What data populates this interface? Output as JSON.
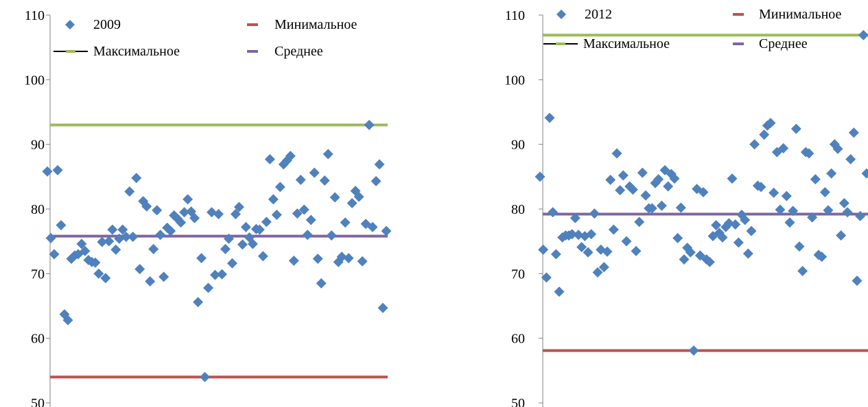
{
  "colors": {
    "points": "#4f81bd",
    "min_line": "#c0504d",
    "max_line": "#9bbb59",
    "mean_line": "#8064a2",
    "axis": "#808080"
  },
  "chart_data": [
    {
      "type": "scatter",
      "title": "",
      "xlabel": "",
      "ylabel": "",
      "ylim": [
        50,
        110
      ],
      "yticks": [
        "50",
        "60",
        "70",
        "80",
        "90",
        "100",
        "110"
      ],
      "legend": {
        "placement": "top",
        "points_label": "2009",
        "min_label": "Минимальное",
        "max_label": "Максимальное",
        "mean_label": "Среднее"
      },
      "min_value": 54,
      "max_value": 93,
      "mean_value": 75.8,
      "x": [
        1,
        2,
        3,
        4,
        5,
        6,
        7,
        8,
        9,
        10,
        11,
        12,
        13,
        14,
        15,
        16,
        17,
        18,
        19,
        20,
        21,
        22,
        23,
        24,
        25,
        26,
        27,
        28,
        29,
        30,
        31,
        32,
        33,
        34,
        35,
        36,
        37,
        38,
        39,
        40,
        41,
        42,
        43,
        44,
        45,
        46,
        47,
        48,
        49,
        50,
        51,
        52,
        53,
        54,
        55,
        56,
        57,
        58,
        59,
        60,
        61,
        62,
        63,
        64,
        65,
        66,
        67,
        68,
        69,
        70,
        71,
        72,
        73,
        74,
        75,
        76,
        77,
        78,
        79,
        80,
        81,
        82,
        83,
        84,
        85,
        86,
        87,
        88,
        89,
        90,
        91,
        92,
        93,
        94,
        95,
        96,
        97,
        98,
        99,
        100
      ],
      "values": [
        85.8,
        75.5,
        73,
        86,
        77.5,
        63.7,
        62.8,
        72.3,
        72.8,
        73,
        74.6,
        73.5,
        72.1,
        71.8,
        71.7,
        70,
        74.9,
        69.3,
        75,
        76.8,
        73.7,
        75.4,
        76.8,
        75.7,
        82.7,
        75.7,
        84.8,
        70.7,
        81.2,
        80.4,
        68.8,
        73.8,
        79.8,
        76,
        69.5,
        77.1,
        76.6,
        79,
        78.5,
        77.9,
        79.5,
        81.5,
        79.6,
        78.6,
        65.6,
        72.4,
        54,
        67.8,
        79.5,
        69.8,
        79.2,
        69.9,
        73.8,
        75.4,
        71.6,
        79.2,
        80.3,
        74.5,
        77.2,
        75.6,
        74.6,
        76.9,
        76.8,
        72.7,
        78,
        87.7,
        81.5,
        79.1,
        83.4,
        86.9,
        87.5,
        88.2,
        72,
        79.3,
        84.5,
        79.9,
        76,
        78.3,
        85.6,
        72.3,
        68.5,
        84.4,
        88.5,
        75.9,
        81.8,
        71.8,
        72.6,
        77.9,
        72.4,
        80.9,
        82.8,
        81.9,
        71.9,
        77.7,
        93,
        77.2,
        84.3,
        86.9,
        64.7,
        76.6
      ]
    },
    {
      "type": "scatter",
      "title": "",
      "xlabel": "",
      "ylabel": "",
      "ylim": [
        50,
        110
      ],
      "yticks": [
        "50",
        "60",
        "70",
        "80",
        "90",
        "100",
        "110"
      ],
      "legend": {
        "placement": "top",
        "points_label": "2012",
        "min_label": "Минимальное",
        "max_label": "Максимальное",
        "mean_label": "Среднее"
      },
      "min_value": 58.1,
      "max_value": 106.9,
      "mean_value": 79.2,
      "x": [
        1,
        2,
        3,
        4,
        5,
        6,
        7,
        8,
        9,
        10,
        11,
        12,
        13,
        14,
        15,
        16,
        17,
        18,
        19,
        20,
        21,
        22,
        23,
        24,
        25,
        26,
        27,
        28,
        29,
        30,
        31,
        32,
        33,
        34,
        35,
        36,
        37,
        38,
        39,
        40,
        41,
        42,
        43,
        44,
        45,
        46,
        47,
        48,
        49,
        50,
        51,
        52,
        53,
        54,
        55,
        56,
        57,
        58,
        59,
        60,
        61,
        62,
        63,
        64,
        65,
        66,
        67,
        68,
        69,
        70,
        71,
        72,
        73,
        74,
        75,
        76,
        77,
        78,
        79,
        80,
        81,
        82,
        83,
        84,
        85,
        86,
        87,
        88,
        89,
        90,
        91,
        92,
        93,
        94,
        95,
        96,
        97,
        98,
        99,
        100,
        101,
        102,
        103
      ],
      "values": [
        85,
        73.7,
        69.4,
        94.1,
        79.5,
        73,
        67.2,
        75.6,
        75.9,
        75.9,
        76.1,
        78.6,
        76,
        74.1,
        75.8,
        73.3,
        76.1,
        79.3,
        70.2,
        73.7,
        71,
        73.4,
        84.5,
        76.8,
        88.6,
        82.9,
        85.2,
        75,
        83.5,
        83,
        73.5,
        78,
        85.6,
        82.1,
        80.1,
        80.1,
        84,
        84.6,
        80.5,
        86,
        83.5,
        85.4,
        84.7,
        75.5,
        80.2,
        72.2,
        74,
        73.3,
        58.1,
        83.1,
        72.8,
        82.6,
        72.2,
        71.8,
        75.8,
        77.5,
        76.3,
        75.6,
        77.2,
        77.8,
        84.7,
        77.6,
        74.8,
        79.1,
        78.3,
        73.1,
        76.6,
        90,
        83.6,
        83.4,
        91.5,
        92.9,
        93.3,
        82.5,
        88.8,
        79.9,
        89.4,
        82,
        77.9,
        79.7,
        92.4,
        74.2,
        70.4,
        88.8,
        88.6,
        78.7,
        84.6,
        72.9,
        72.6,
        82.6,
        79.8,
        85.5,
        90,
        89.3,
        75.9,
        80.9,
        79.5,
        87.7,
        91.8,
        68.9,
        78.9,
        106.9,
        85.5
      ]
    }
  ]
}
